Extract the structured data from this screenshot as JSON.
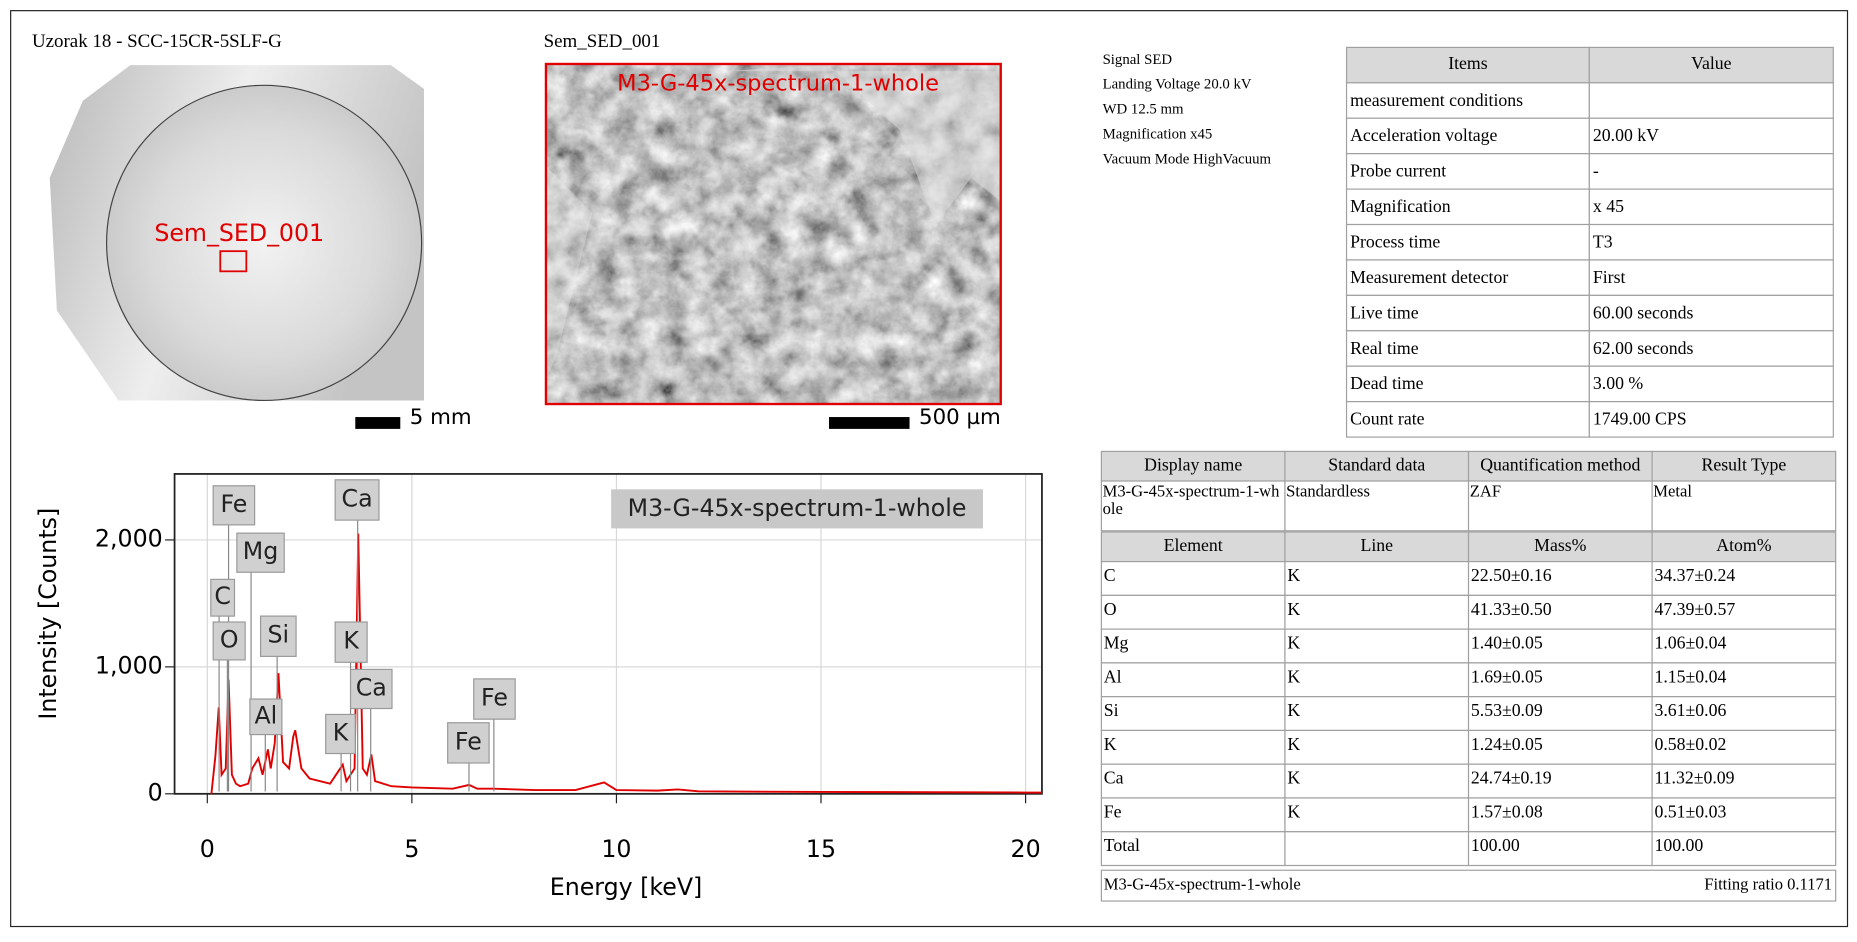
{
  "sample": {
    "title": "Uzorak 18 - SCC-15CR-5SLF-G",
    "marker": "Sem_SED_001",
    "scale": "5 mm"
  },
  "sem_image": {
    "title": "Sem_SED_001",
    "overlay": "M3-G-45x-spectrum-1-whole",
    "scale": "500 µm"
  },
  "conditions": [
    "Signal SED",
    "Landing Voltage 20.0 kV",
    "WD 12.5 mm",
    "Magnification x45",
    "Vacuum Mode HighVacuum"
  ],
  "items_table": {
    "header": [
      "Items",
      "Value"
    ],
    "rows": [
      [
        "measurement conditions"
      ],
      [
        "Acceleration voltage",
        "20.00 kV"
      ],
      [
        "Probe current",
        "-"
      ],
      [
        "Magnification",
        "x 45"
      ],
      [
        "Process time",
        "T3"
      ],
      [
        "Measurement detector",
        "First"
      ],
      [
        "Live time",
        "60.00 seconds"
      ],
      [
        "Real time",
        "62.00 seconds"
      ],
      [
        "Dead time",
        "3.00 %"
      ],
      [
        "Count rate",
        "1749.00 CPS"
      ]
    ]
  },
  "result_table": {
    "header": [
      "Display name",
      "Standard data",
      "Quantification method",
      "Result Type"
    ],
    "info": [
      "M3-G-45x-spectrum-1-whole",
      "Standardless",
      "ZAF",
      "Metal"
    ],
    "element_header": [
      "Element",
      "Line",
      "Mass%",
      "Atom%"
    ],
    "element_rows": [
      [
        "C",
        "K",
        "22.50±0.16",
        "34.37±0.24"
      ],
      [
        "O",
        "K",
        "41.33±0.50",
        "47.39±0.57"
      ],
      [
        "Mg",
        "K",
        "1.40±0.05",
        "1.06±0.04"
      ],
      [
        "Al",
        "K",
        "1.69±0.05",
        "1.15±0.04"
      ],
      [
        "Si",
        "K",
        "5.53±0.09",
        "3.61±0.06"
      ],
      [
        "K",
        "K",
        "1.24±0.05",
        "0.58±0.02"
      ],
      [
        "Ca",
        "K",
        "24.74±0.19",
        "11.32±0.09"
      ],
      [
        "Fe",
        "K",
        "1.57±0.08",
        "0.51±0.03"
      ]
    ],
    "total": [
      "Total",
      "100.00",
      "100.00"
    ],
    "footer": {
      "name": "M3-G-45x-spectrum-1-whole",
      "fitting": "Fitting ratio 0.1171"
    }
  },
  "chart_data": {
    "type": "line",
    "x_label": "Energy [keV]",
    "y_label": "Intensity [Counts]",
    "x": [
      0.1,
      0.2,
      0.28,
      0.35,
      0.45,
      0.52,
      0.6,
      0.7,
      0.8,
      1.0,
      1.1,
      1.25,
      1.35,
      1.48,
      1.55,
      1.65,
      1.74,
      1.85,
      2.0,
      2.1,
      2.15,
      2.3,
      2.5,
      3.0,
      3.31,
      3.4,
      3.6,
      3.69,
      3.8,
      3.9,
      4.01,
      4.1,
      4.5,
      5.0,
      6.0,
      6.4,
      6.6,
      7.0,
      8.0,
      9.0,
      9.7,
      10.0,
      11.0,
      11.5,
      12.0,
      15.0,
      20.0,
      20.4
    ],
    "series": [
      {
        "name": "M3-G-45x-spectrum-1-whole",
        "color": "#e00000",
        "values": [
          0,
          300,
          680,
          150,
          200,
          900,
          150,
          80,
          60,
          80,
          200,
          280,
          150,
          350,
          200,
          400,
          950,
          250,
          200,
          450,
          500,
          200,
          120,
          80,
          230,
          100,
          200,
          2050,
          200,
          150,
          310,
          100,
          60,
          50,
          40,
          70,
          40,
          40,
          30,
          30,
          90,
          30,
          25,
          35,
          20,
          15,
          10,
          10
        ]
      }
    ],
    "xlim": [
      -0.8,
      20.4
    ],
    "ylim": [
      0,
      2520
    ],
    "xticks": [
      0,
      5,
      10,
      15,
      20
    ],
    "yticks": [
      0,
      {
        "value": 1000,
        "label": "1,000"
      },
      {
        "value": 2000,
        "label": "2,000"
      }
    ],
    "grid": true,
    "annotations": [
      "Fe",
      "Mg",
      "C",
      "O",
      "Si",
      "Al",
      "Ca",
      "K",
      "Ca",
      "K",
      "Fe",
      "Fe"
    ]
  }
}
